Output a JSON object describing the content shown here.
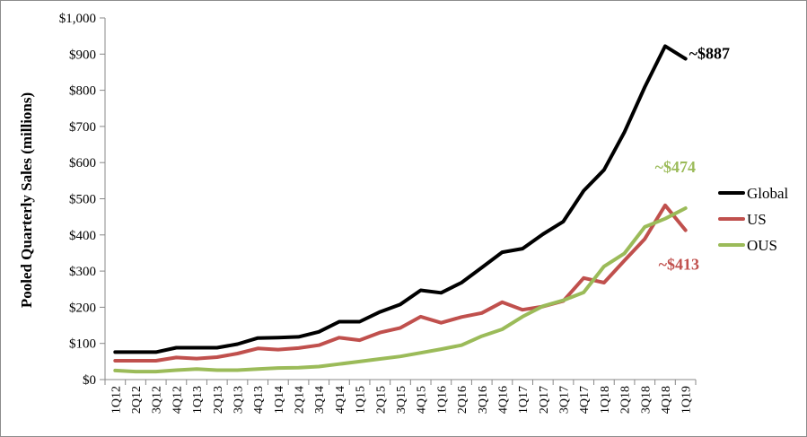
{
  "chart_data": {
    "type": "line",
    "title": "",
    "xlabel": "",
    "ylabel": "Pooled Quarterly Sales (millions)",
    "ylim": [
      0,
      1000
    ],
    "y_ticks": [
      "$0",
      "$100",
      "$200",
      "$300",
      "$400",
      "$500",
      "$600",
      "$700",
      "$800",
      "$900",
      "$1,000"
    ],
    "categories": [
      "1Q12",
      "2Q12",
      "3Q12",
      "4Q12",
      "1Q13",
      "2Q13",
      "3Q13",
      "4Q13",
      "1Q14",
      "2Q14",
      "3Q14",
      "4Q14",
      "1Q15",
      "2Q15",
      "3Q15",
      "4Q15",
      "1Q16",
      "2Q16",
      "3Q16",
      "4Q16",
      "1Q17",
      "2Q17",
      "3Q17",
      "4Q17",
      "1Q18",
      "2Q18",
      "3Q18",
      "4Q18",
      "1Q19"
    ],
    "series": [
      {
        "name": "Global",
        "color": "#000000",
        "values": [
          76,
          76,
          76,
          88,
          88,
          88,
          98,
          115,
          116,
          118,
          132,
          160,
          160,
          187,
          208,
          247,
          240,
          268,
          310,
          352,
          362,
          402,
          437,
          522,
          580,
          684,
          809,
          922,
          887
        ]
      },
      {
        "name": "US",
        "color": "#c0504d",
        "values": [
          52,
          52,
          52,
          61,
          58,
          62,
          72,
          86,
          83,
          87,
          95,
          116,
          109,
          130,
          143,
          174,
          157,
          173,
          184,
          214,
          193,
          202,
          217,
          281,
          268,
          329,
          389,
          482,
          413
        ]
      },
      {
        "name": "OUS",
        "color": "#9bbb59",
        "values": [
          25,
          22,
          22,
          26,
          29,
          26,
          26,
          29,
          32,
          33,
          36,
          43,
          50,
          57,
          64,
          74,
          84,
          95,
          120,
          139,
          174,
          203,
          219,
          241,
          313,
          349,
          422,
          445,
          474
        ]
      }
    ],
    "grid": false,
    "legend_position": "right",
    "annotations": [
      {
        "series": "Global",
        "text": "~$887",
        "color": "#000000"
      },
      {
        "series": "OUS",
        "text": "~$474",
        "color": "#9bbb59"
      },
      {
        "series": "US",
        "text": "~$413",
        "color": "#c0504d"
      }
    ]
  }
}
